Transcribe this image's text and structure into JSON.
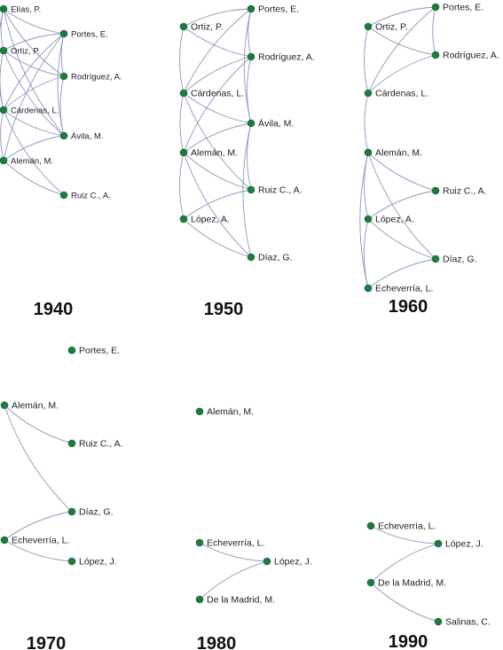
{
  "colors": {
    "node": "#1f7a3f",
    "edge": "#8a8fb8",
    "text": "#222222"
  },
  "panels": [
    {
      "year": "1940",
      "nodes": [
        "Elías, P.",
        "Portes, E.",
        "Ortiz, P.",
        "Rodríguez, A.",
        "Cárdenas, L.",
        "Ávila, M.",
        "Alemán, M.",
        "Ruiz C., A."
      ]
    },
    {
      "year": "1950",
      "nodes": [
        "Portes, E.",
        "Ortiz, P.",
        "Rodríguez, A.",
        "Cárdenas, L.",
        "Ávila, M.",
        "Alemán, M.",
        "Ruiz C., A.",
        "López, A.",
        "Díaz, G."
      ]
    },
    {
      "year": "1960",
      "nodes": [
        "Portes, E.",
        "Ortiz, P.",
        "Rodríguez, A.",
        "Cárdenas, L.",
        "Alemán, M.",
        "Ruiz C., A.",
        "López, A.",
        "Díaz, G.",
        "Echeverría, L."
      ]
    },
    {
      "year": "1970",
      "nodes": [
        "Portes, E.",
        "Alemán, M.",
        "Ruiz C., A.",
        "Díaz, G.",
        "Echeverría, L.",
        "López, J."
      ]
    },
    {
      "year": "1980",
      "nodes": [
        "Alemán, M.",
        "Echeverría, L.",
        "López, J.",
        "De la Madrid, M."
      ]
    },
    {
      "year": "1990",
      "nodes": [
        "Echeverría, L.",
        "López, J.",
        "De la Madrid, M.",
        "Salinas, C."
      ]
    }
  ]
}
